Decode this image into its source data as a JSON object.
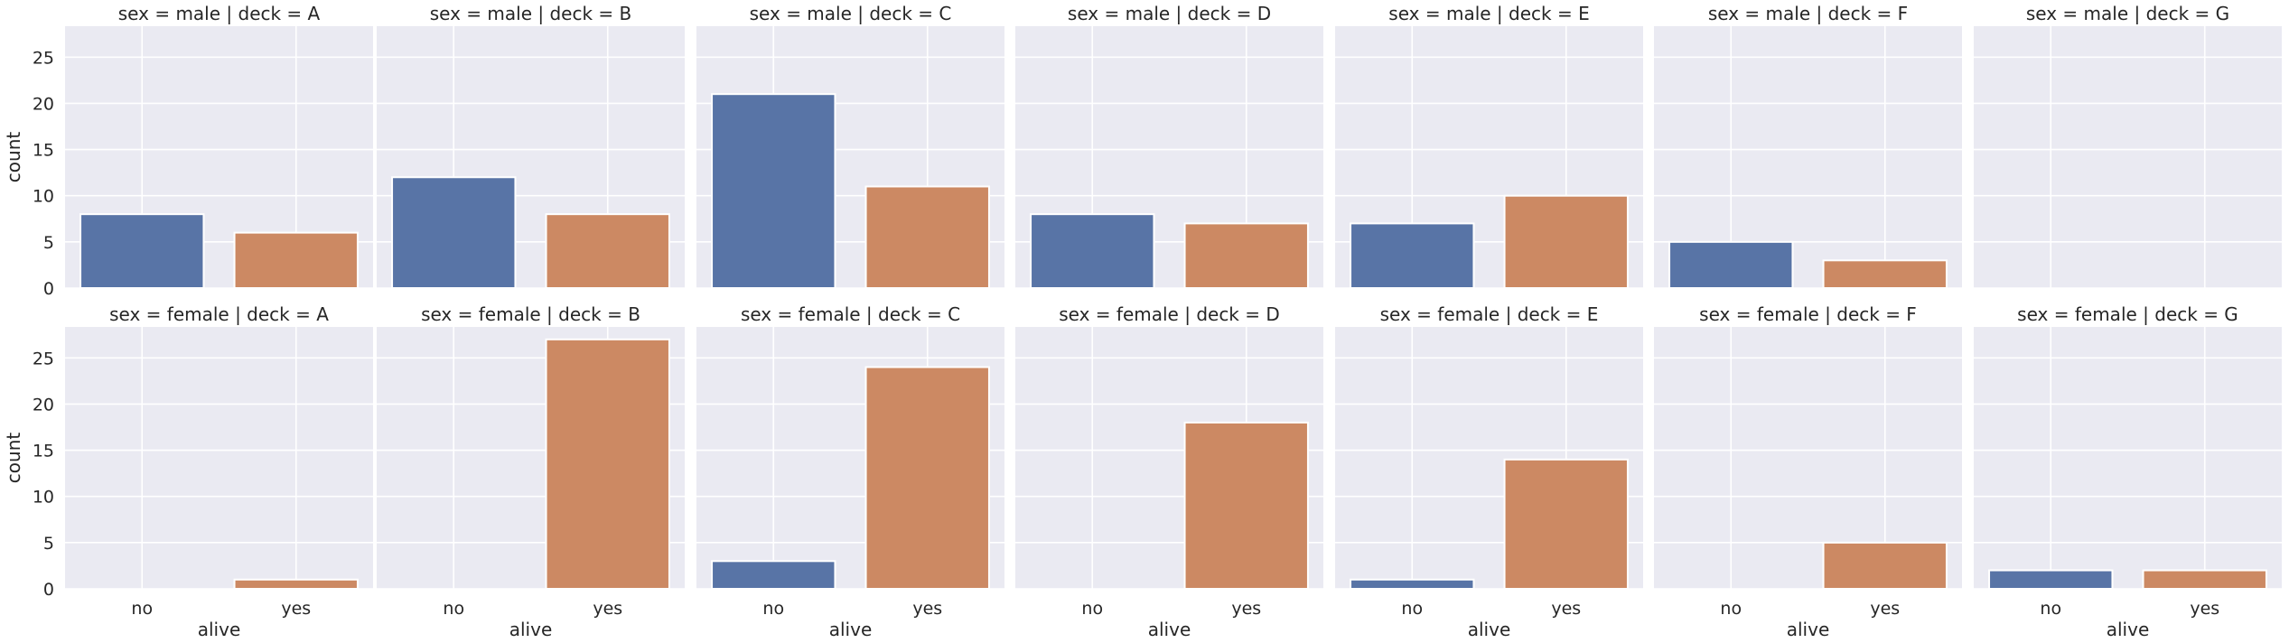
{
  "chart_data": {
    "type": "bar",
    "kind": "faceted count plot",
    "row_variable": "sex",
    "col_variable": "deck",
    "rows": [
      "male",
      "female"
    ],
    "cols": [
      "A",
      "B",
      "C",
      "D",
      "E",
      "F",
      "G"
    ],
    "facet_title_template": "{row_var} = {row} | {col_var} = {col}",
    "categories": [
      "no",
      "yes"
    ],
    "xlabel": "alive",
    "ylabel": "count",
    "ylim": [
      0,
      28.35
    ],
    "yticks": [
      0,
      5,
      10,
      15,
      20,
      25
    ],
    "grid": true,
    "colors": {
      "no": "#5874a6",
      "yes": "#cc8963",
      "background": "#eaeaf2",
      "grid": "#ffffff"
    },
    "series": [
      {
        "row": "male",
        "deck": "A",
        "values": [
          8,
          6
        ]
      },
      {
        "row": "male",
        "deck": "B",
        "values": [
          12,
          8
        ]
      },
      {
        "row": "male",
        "deck": "C",
        "values": [
          21,
          11
        ]
      },
      {
        "row": "male",
        "deck": "D",
        "values": [
          8,
          7
        ]
      },
      {
        "row": "male",
        "deck": "E",
        "values": [
          7,
          10
        ]
      },
      {
        "row": "male",
        "deck": "F",
        "values": [
          5,
          3
        ]
      },
      {
        "row": "male",
        "deck": "G",
        "values": [
          0,
          0
        ]
      },
      {
        "row": "female",
        "deck": "A",
        "values": [
          0,
          1
        ]
      },
      {
        "row": "female",
        "deck": "B",
        "values": [
          0,
          27
        ]
      },
      {
        "row": "female",
        "deck": "C",
        "values": [
          3,
          24
        ]
      },
      {
        "row": "female",
        "deck": "D",
        "values": [
          0,
          18
        ]
      },
      {
        "row": "female",
        "deck": "E",
        "values": [
          1,
          14
        ]
      },
      {
        "row": "female",
        "deck": "F",
        "values": [
          0,
          5
        ]
      },
      {
        "row": "female",
        "deck": "G",
        "values": [
          2,
          2
        ]
      }
    ]
  }
}
